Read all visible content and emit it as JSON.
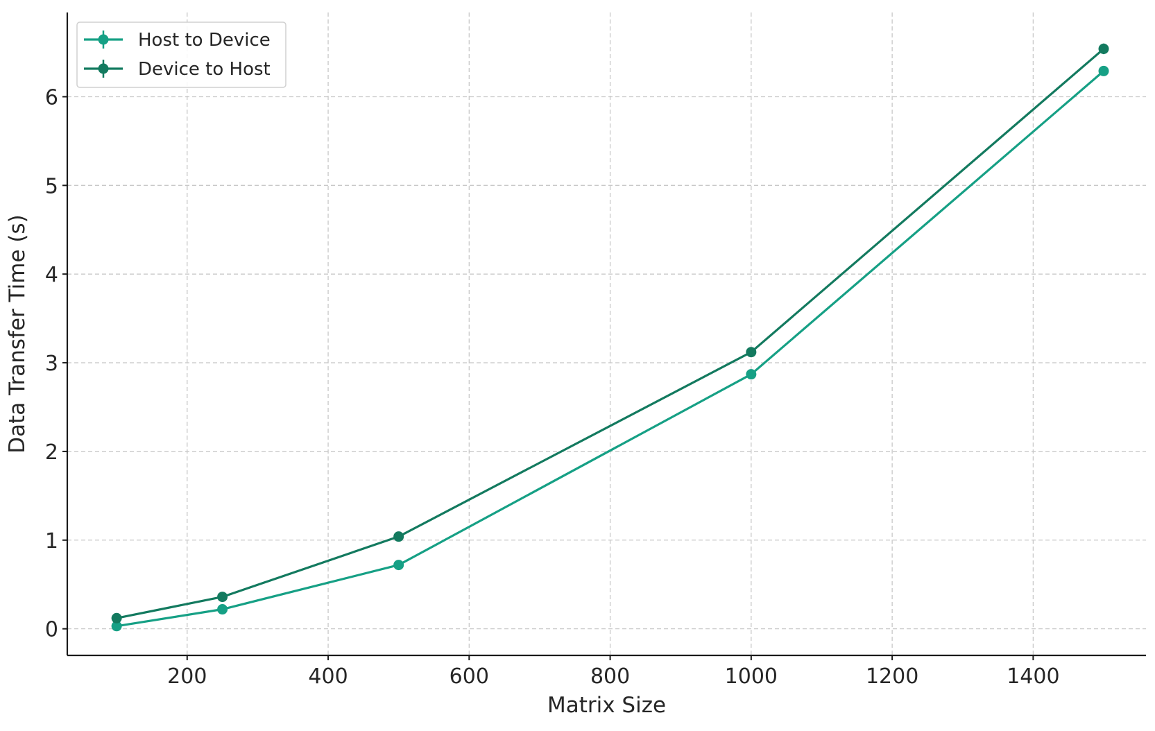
{
  "chart_data": {
    "type": "line",
    "xlabel": "Matrix Size",
    "ylabel": "Data Transfer Time (s)",
    "xlim": [
      30,
      1560
    ],
    "ylim": [
      -0.3,
      6.95
    ],
    "xticks": [
      200,
      400,
      600,
      800,
      1000,
      1200,
      1400
    ],
    "yticks": [
      0,
      1,
      2,
      3,
      4,
      5,
      6
    ],
    "grid": true,
    "legend_position": "top-left",
    "x": [
      100,
      250,
      500,
      1000,
      1500
    ],
    "series": [
      {
        "name": "Host to Device",
        "color": "#16a085",
        "marker": "circle",
        "values": [
          0.03,
          0.22,
          0.72,
          2.87,
          6.29
        ],
        "errors": [
          0.01,
          0.01,
          0.02,
          0.02,
          0.03
        ]
      },
      {
        "name": "Device to Host",
        "color": "#137a5f",
        "marker": "circle",
        "values": [
          0.12,
          0.36,
          1.04,
          3.12,
          6.54
        ],
        "errors": [
          0.01,
          0.01,
          0.02,
          0.02,
          0.06
        ]
      }
    ]
  }
}
